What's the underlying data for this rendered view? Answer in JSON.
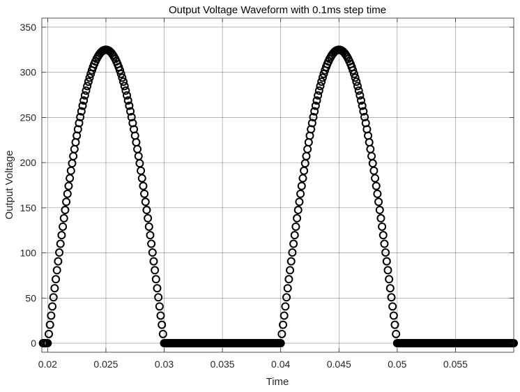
{
  "chart_data": {
    "type": "scatter",
    "title": "Output Voltage Waveform with 0.1ms step time",
    "xlabel": "Time",
    "ylabel": "Output Voltage",
    "xlim": [
      0.0195,
      0.06
    ],
    "ylim": [
      -10,
      360
    ],
    "xticks": [
      0.02,
      0.025,
      0.03,
      0.035,
      0.04,
      0.045,
      0.05,
      0.055
    ],
    "xtick_labels": [
      "0.02",
      "0.025",
      "0.03",
      "0.035",
      "0.04",
      "0.045",
      "0.05",
      "0.055"
    ],
    "yticks": [
      0,
      50,
      100,
      150,
      200,
      250,
      300,
      350
    ],
    "ytick_labels": [
      "0",
      "50",
      "100",
      "150",
      "200",
      "250",
      "300",
      "350"
    ],
    "grid": true,
    "x_start": 0.0196,
    "x_end": 0.06,
    "x_step": 0.0001,
    "amplitude": 325,
    "frequency_hz": 50,
    "marker": "circle",
    "marker_color": "#000000",
    "grid_color": "#262626",
    "axis_color": "#262626",
    "background": "#ffffff"
  }
}
